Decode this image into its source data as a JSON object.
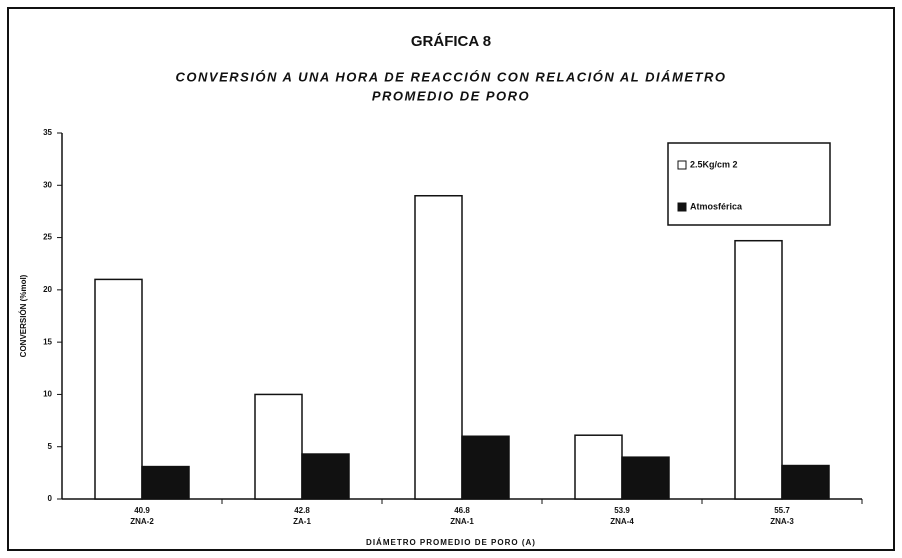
{
  "chart_data": {
    "type": "bar",
    "title": "GRÁFICA 8",
    "subtitle": [
      "CONVERSIÓN A UNA HORA DE REACCIÓN CON RELACIÓN AL DIÁMETRO",
      "PROMEDIO DE PORO"
    ],
    "x_label": "DIÁMETRO PROMEDIO DE PORO (A)",
    "y_label": "CONVERSIÓN (%mol)",
    "categories": [
      [
        "40.9",
        "ZNA-2"
      ],
      [
        "42.8",
        "ZA-1"
      ],
      [
        "46.8",
        "ZNA-1"
      ],
      [
        "53.9",
        "ZNA-4"
      ],
      [
        "55.7",
        "ZNA-3"
      ]
    ],
    "series": [
      {
        "name": "2.5Kg/cm 2",
        "color": "#ffffff",
        "values": [
          21,
          10,
          29,
          6.1,
          24.7
        ]
      },
      {
        "name": "Atmosférica",
        "color": "#111111",
        "values": [
          3.1,
          4.3,
          6,
          4,
          3.2
        ]
      }
    ],
    "ylim": [
      0,
      35
    ],
    "yticks": [
      0,
      5,
      10,
      15,
      20,
      25,
      30,
      35
    ],
    "legend": "upper right"
  }
}
